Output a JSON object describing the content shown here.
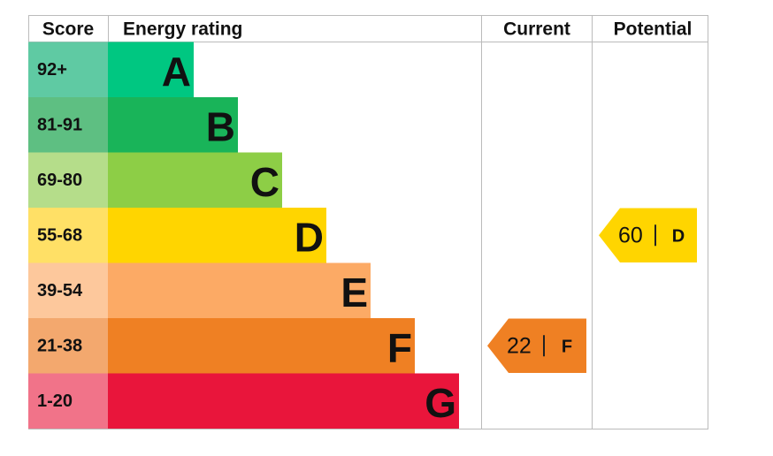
{
  "chart_data": {
    "type": "epc",
    "headers": {
      "score": "Score",
      "rating": "Energy rating",
      "current": "Current",
      "potential": "Potential"
    },
    "bands": [
      {
        "score": "92+",
        "letter": "A",
        "color": "#00c781",
        "score_color": "#5fcaa3"
      },
      {
        "score": "81-91",
        "letter": "B",
        "color": "#19b459",
        "score_color": "#5ebf82"
      },
      {
        "score": "69-80",
        "letter": "C",
        "color": "#8dce46",
        "score_color": "#b5dd8a"
      },
      {
        "score": "55-68",
        "letter": "D",
        "color": "#ffd500",
        "score_color": "#ffe066"
      },
      {
        "score": "39-54",
        "letter": "E",
        "color": "#fcaa65",
        "score_color": "#fdc89c"
      },
      {
        "score": "21-38",
        "letter": "F",
        "color": "#ef8023",
        "score_color": "#f3a86e"
      },
      {
        "score": "1-20",
        "letter": "G",
        "color": "#e9153b",
        "score_color": "#f17389"
      }
    ],
    "current": {
      "value": 22,
      "letter": "F"
    },
    "potential": {
      "value": 60,
      "letter": "D"
    }
  }
}
